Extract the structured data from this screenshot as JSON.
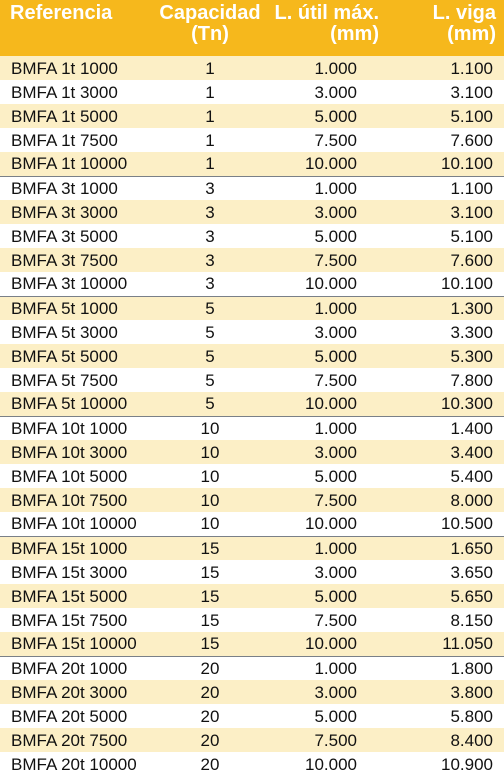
{
  "header": {
    "referencia": "Referencia",
    "capacidad": [
      "Capacidad",
      "(Tn)"
    ],
    "longitud_util": [
      "L. útil máx.",
      "(mm)"
    ],
    "longitud_viga": [
      "L. viga",
      "(mm)"
    ]
  },
  "rows": [
    {
      "ref": "BMFA 1t 1000",
      "cap": "1",
      "lu": "1.000",
      "lv": "1.100"
    },
    {
      "ref": "BMFA 1t 3000",
      "cap": "1",
      "lu": "3.000",
      "lv": "3.100"
    },
    {
      "ref": "BMFA 1t 5000",
      "cap": "1",
      "lu": "5.000",
      "lv": "5.100"
    },
    {
      "ref": "BMFA 1t 7500",
      "cap": "1",
      "lu": "7.500",
      "lv": "7.600"
    },
    {
      "ref": "BMFA 1t 10000",
      "cap": "1",
      "lu": "10.000",
      "lv": "10.100"
    },
    {
      "ref": "BMFA 3t 1000",
      "cap": "3",
      "lu": "1.000",
      "lv": "1.100"
    },
    {
      "ref": "BMFA 3t 3000",
      "cap": "3",
      "lu": "3.000",
      "lv": "3.100"
    },
    {
      "ref": "BMFA 3t 5000",
      "cap": "3",
      "lu": "5.000",
      "lv": "5.100"
    },
    {
      "ref": "BMFA 3t 7500",
      "cap": "3",
      "lu": "7.500",
      "lv": "7.600"
    },
    {
      "ref": "BMFA 3t 10000",
      "cap": "3",
      "lu": "10.000",
      "lv": "10.100"
    },
    {
      "ref": "BMFA 5t 1000",
      "cap": "5",
      "lu": "1.000",
      "lv": "1.300"
    },
    {
      "ref": "BMFA 5t 3000",
      "cap": "5",
      "lu": "3.000",
      "lv": "3.300"
    },
    {
      "ref": "BMFA 5t 5000",
      "cap": "5",
      "lu": "5.000",
      "lv": "5.300"
    },
    {
      "ref": "BMFA 5t 7500",
      "cap": "5",
      "lu": "7.500",
      "lv": "7.800"
    },
    {
      "ref": "BMFA 5t 10000",
      "cap": "5",
      "lu": "10.000",
      "lv": "10.300"
    },
    {
      "ref": "BMFA 10t 1000",
      "cap": "10",
      "lu": "1.000",
      "lv": "1.400"
    },
    {
      "ref": "BMFA 10t 3000",
      "cap": "10",
      "lu": "3.000",
      "lv": "3.400"
    },
    {
      "ref": "BMFA 10t 5000",
      "cap": "10",
      "lu": "5.000",
      "lv": "5.400"
    },
    {
      "ref": "BMFA 10t 7500",
      "cap": "10",
      "lu": "7.500",
      "lv": "8.000"
    },
    {
      "ref": "BMFA 10t 10000",
      "cap": "10",
      "lu": "10.000",
      "lv": "10.500"
    },
    {
      "ref": "BMFA 15t 1000",
      "cap": "15",
      "lu": "1.000",
      "lv": "1.650"
    },
    {
      "ref": "BMFA 15t 3000",
      "cap": "15",
      "lu": "3.000",
      "lv": "3.650"
    },
    {
      "ref": "BMFA 15t 5000",
      "cap": "15",
      "lu": "5.000",
      "lv": "5.650"
    },
    {
      "ref": "BMFA 15t 7500",
      "cap": "15",
      "lu": "7.500",
      "lv": "8.150"
    },
    {
      "ref": "BMFA 15t 10000",
      "cap": "15",
      "lu": "10.000",
      "lv": "11.050"
    },
    {
      "ref": "BMFA 20t 1000",
      "cap": "20",
      "lu": "1.000",
      "lv": "1.800"
    },
    {
      "ref": "BMFA 20t 3000",
      "cap": "20",
      "lu": "3.000",
      "lv": "3.800"
    },
    {
      "ref": "BMFA 20t 5000",
      "cap": "20",
      "lu": "5.000",
      "lv": "5.800"
    },
    {
      "ref": "BMFA 20t 7500",
      "cap": "20",
      "lu": "7.500",
      "lv": "8.400"
    },
    {
      "ref": "BMFA 20t 10000",
      "cap": "20",
      "lu": "10.000",
      "lv": "10.900"
    }
  ]
}
